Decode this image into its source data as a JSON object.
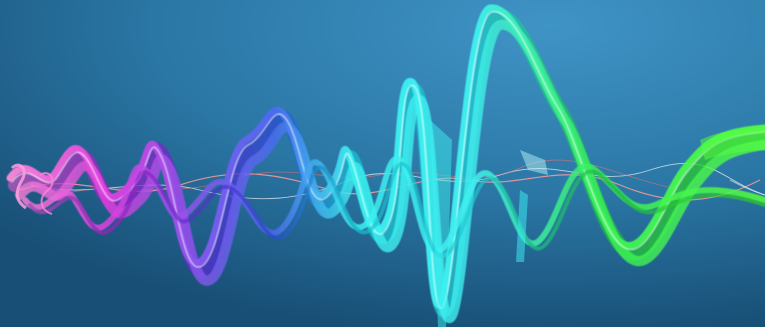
{
  "image": {
    "subject": "abstract-sound-wave",
    "colors": {
      "background_top": "#3a8ec0",
      "background_bottom": "#1a567e",
      "pink": "#ff7fd0",
      "magenta": "#e040e0",
      "violet": "#7a5cf0",
      "blue": "#4a6cf0",
      "cyan": "#3cf0f0",
      "aqua": "#40e8e0",
      "green": "#39f05a",
      "lime": "#55ff40",
      "thin_strand_red": "#ff8080",
      "thin_strand_white": "#ffffff"
    }
  }
}
